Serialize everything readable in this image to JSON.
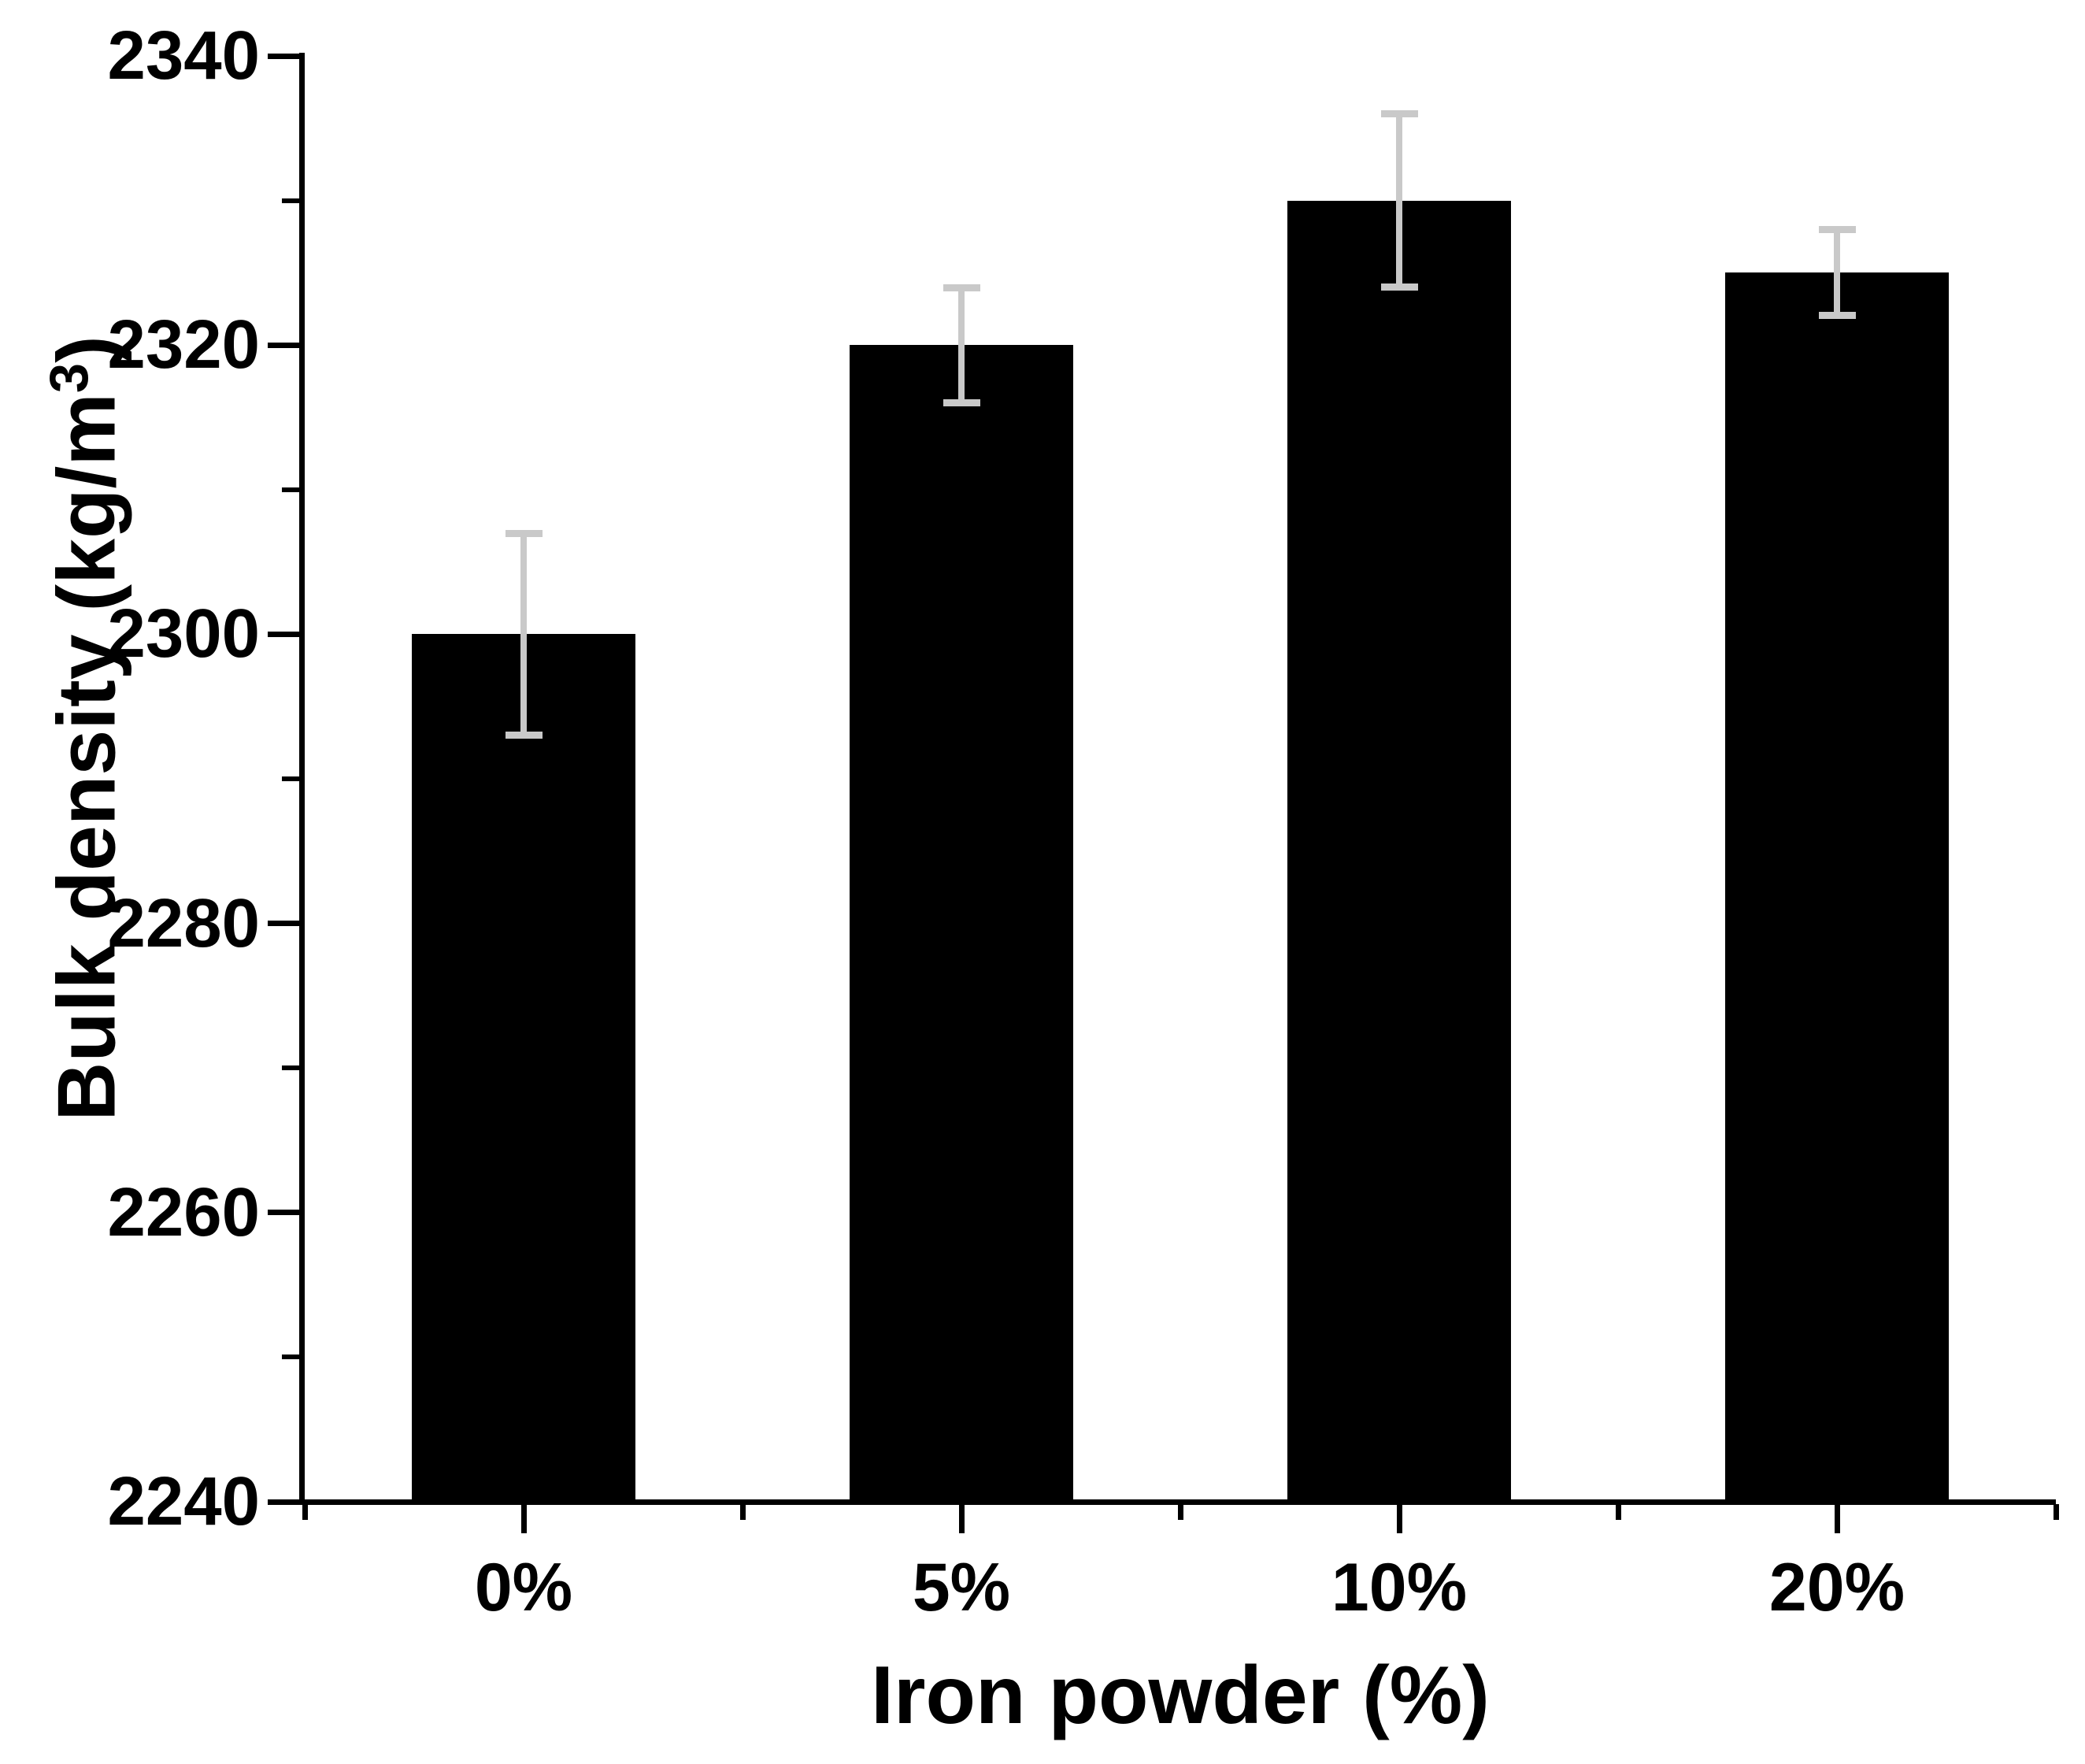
{
  "figure": {
    "background": "#ffffff",
    "text_color": "#000000"
  },
  "chart_data": {
    "type": "bar",
    "title": "",
    "categories": [
      "0%",
      "5%",
      "10%",
      "20%"
    ],
    "values": [
      2300,
      2320,
      2330,
      2325
    ],
    "error_bars_plus_minus": [
      7,
      4,
      6,
      3
    ],
    "xlabel": "Iron powder (%)",
    "ylabel": "Bulk density (kg/m³)",
    "ylabel_parts": {
      "main": "Bulk density (kg/m",
      "sup": "3",
      "close": ")"
    },
    "ylim": [
      2240,
      2340
    ],
    "yticks": [
      2240,
      2260,
      2280,
      2300,
      2320,
      2340
    ],
    "y_minor_tick_step": 10,
    "x_minor_ticks_at_slot_boundaries": true,
    "grid": false,
    "legend": false,
    "bar_color": "#000000",
    "error_bar_color": "#c9c9c9",
    "axis_color": "#000000"
  }
}
